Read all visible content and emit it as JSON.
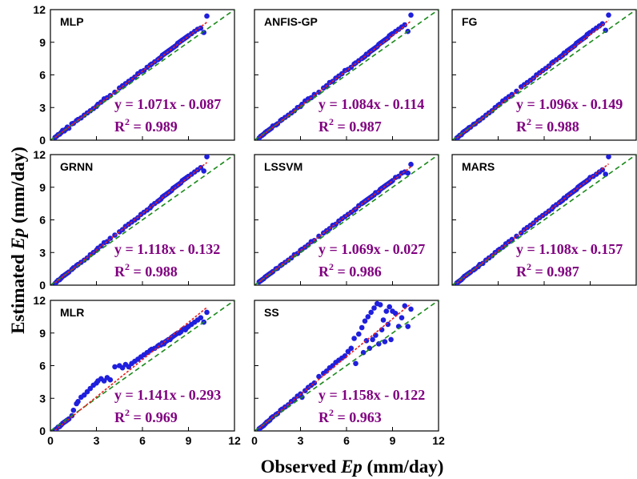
{
  "chart_data": {
    "type": "scatter",
    "figure": {
      "xlabel_prefix": "Observed ",
      "xlabel_var": "Ep",
      "xlabel_unit": " (mm/day)",
      "ylabel_prefix": "Estimated ",
      "ylabel_var": "Ep",
      "ylabel_unit": " (mm/day)"
    },
    "axes": {
      "xlim": [
        0,
        12
      ],
      "ylim": [
        0,
        12
      ],
      "xticks": [
        "0",
        "3",
        "6",
        "9",
        "12"
      ],
      "yticks": [
        "0",
        "3",
        "6",
        "9",
        "12"
      ]
    },
    "colors": {
      "points": "#1f1fdd",
      "fit_line": "#e8201e",
      "identity_line": "#1b8a1b",
      "equation": "#800080"
    },
    "panels": [
      {
        "title": "MLP",
        "eq": "y = 1.071x - 0.087",
        "r2_prefix": "R",
        "r2_sup": "2",
        "r2_suffix": " = 0.989",
        "slope": 1.071,
        "intercept": -0.087,
        "r2": 0.989
      },
      {
        "title": "ANFIS-GP",
        "eq": "y = 1.084x - 0.114",
        "r2_prefix": "R",
        "r2_sup": "2",
        "r2_suffix": " = 0.987",
        "slope": 1.084,
        "intercept": -0.114,
        "r2": 0.987
      },
      {
        "title": "FG",
        "eq": "y = 1.096x - 0.149",
        "r2_prefix": "R",
        "r2_sup": "2",
        "r2_suffix": " = 0.988",
        "slope": 1.096,
        "intercept": -0.149,
        "r2": 0.988
      },
      {
        "title": "GRNN",
        "eq": "y = 1.118x - 0.132",
        "r2_prefix": "R",
        "r2_sup": "2",
        "r2_suffix": " = 0.988",
        "slope": 1.118,
        "intercept": -0.132,
        "r2": 0.988
      },
      {
        "title": "LSSVM",
        "eq": "y = 1.069x - 0.027",
        "r2_prefix": "R",
        "r2_sup": "2",
        "r2_suffix": " = 0.986",
        "slope": 1.069,
        "intercept": -0.027,
        "r2": 0.986
      },
      {
        "title": "MARS",
        "eq": "y = 1.108x - 0.157",
        "r2_prefix": "R",
        "r2_sup": "2",
        "r2_suffix": " = 0.987",
        "slope": 1.108,
        "intercept": -0.157,
        "r2": 0.987
      },
      {
        "title": "MLR",
        "eq": "y = 1.141x - 0.293",
        "r2_prefix": "R",
        "r2_sup": "2",
        "r2_suffix": " = 0.969",
        "slope": 1.141,
        "intercept": -0.293,
        "r2": 0.969
      },
      {
        "title": "SS",
        "eq": "y = 1.158x - 0.122",
        "r2_prefix": "R",
        "r2_sup": "2",
        "r2_suffix": " = 0.963",
        "slope": 1.158,
        "intercept": -0.122,
        "r2": 0.963
      }
    ],
    "observed": [
      0.3,
      0.4,
      0.5,
      0.6,
      0.7,
      0.8,
      0.9,
      1.0,
      1.1,
      1.2,
      1.4,
      1.5,
      1.7,
      1.8,
      2.0,
      2.2,
      2.4,
      2.6,
      2.8,
      3.0,
      3.1,
      3.3,
      3.5,
      3.7,
      3.9,
      4.2,
      4.5,
      4.7,
      4.9,
      5.1,
      5.3,
      5.5,
      5.7,
      5.9,
      6.1,
      6.3,
      6.5,
      6.6,
      6.8,
      7.0,
      7.1,
      7.2,
      7.3,
      7.4,
      7.5,
      7.6,
      7.7,
      7.8,
      7.9,
      8.0,
      8.1,
      8.2,
      8.3,
      8.4,
      8.5,
      8.6,
      8.7,
      8.8,
      8.9,
      9.0,
      9.2,
      9.4,
      9.6,
      9.8,
      10.0,
      10.2
    ],
    "estimated": [
      [
        0.25,
        0.35,
        0.5,
        0.55,
        0.7,
        0.9,
        0.85,
        1.0,
        1.2,
        1.1,
        1.5,
        1.55,
        1.8,
        1.9,
        2.05,
        2.3,
        2.5,
        2.7,
        2.9,
        3.1,
        3.3,
        3.5,
        3.8,
        3.9,
        4.1,
        4.4,
        4.8,
        5.0,
        5.2,
        5.4,
        5.6,
        5.8,
        6.1,
        6.3,
        6.4,
        6.7,
        6.9,
        7.0,
        7.2,
        7.4,
        7.5,
        7.6,
        7.8,
        7.9,
        8.0,
        8.1,
        8.2,
        8.3,
        8.4,
        8.5,
        8.6,
        8.7,
        8.9,
        9.0,
        9.1,
        9.2,
        9.3,
        9.4,
        9.5,
        9.6,
        9.8,
        10.0,
        10.2,
        10.3,
        9.9,
        11.4
      ],
      [
        0.2,
        0.35,
        0.45,
        0.55,
        0.7,
        0.8,
        0.9,
        1.0,
        1.1,
        1.3,
        1.4,
        1.5,
        1.8,
        1.9,
        2.1,
        2.3,
        2.5,
        2.7,
        3.0,
        3.1,
        3.3,
        3.6,
        3.8,
        3.9,
        4.2,
        4.4,
        4.8,
        5.0,
        5.3,
        5.4,
        5.7,
        5.9,
        6.1,
        6.4,
        6.5,
        6.7,
        7.0,
        7.1,
        7.3,
        7.5,
        7.6,
        7.7,
        7.9,
        7.9,
        8.1,
        8.2,
        8.3,
        8.4,
        8.5,
        8.6,
        8.8,
        8.9,
        9.0,
        9.1,
        9.2,
        9.3,
        9.4,
        9.6,
        9.7,
        9.8,
        10.0,
        10.2,
        10.4,
        10.6,
        10.0,
        11.5
      ],
      [
        0.2,
        0.3,
        0.45,
        0.5,
        0.7,
        0.8,
        0.9,
        1.0,
        1.15,
        1.2,
        1.45,
        1.5,
        1.75,
        1.85,
        2.05,
        2.3,
        2.5,
        2.7,
        3.0,
        3.2,
        3.3,
        3.6,
        3.8,
        4.0,
        4.2,
        4.5,
        4.9,
        5.1,
        5.3,
        5.5,
        5.7,
        6.0,
        6.2,
        6.4,
        6.6,
        6.8,
        7.1,
        7.2,
        7.4,
        7.6,
        7.7,
        7.8,
        8.0,
        8.0,
        8.2,
        8.3,
        8.4,
        8.5,
        8.6,
        8.7,
        8.9,
        9.0,
        9.1,
        9.2,
        9.3,
        9.4,
        9.5,
        9.7,
        9.8,
        9.9,
        10.1,
        10.3,
        10.5,
        10.7,
        10.1,
        11.5
      ],
      [
        0.15,
        0.3,
        0.45,
        0.5,
        0.65,
        0.8,
        0.9,
        1.0,
        1.1,
        1.2,
        1.45,
        1.6,
        1.8,
        1.9,
        2.1,
        2.3,
        2.5,
        2.8,
        3.0,
        3.2,
        3.4,
        3.6,
        3.9,
        4.0,
        4.3,
        4.6,
        4.9,
        5.1,
        5.4,
        5.6,
        5.8,
        6.0,
        6.2,
        6.5,
        6.7,
        6.9,
        7.1,
        7.3,
        7.5,
        7.7,
        7.8,
        7.9,
        8.1,
        8.2,
        8.3,
        8.4,
        8.5,
        8.6,
        8.7,
        8.9,
        9.0,
        9.1,
        9.2,
        9.3,
        9.4,
        9.6,
        9.7,
        9.8,
        9.9,
        10.0,
        10.2,
        10.4,
        10.6,
        10.8,
        10.5,
        11.8
      ],
      [
        0.3,
        0.4,
        0.5,
        0.6,
        0.75,
        0.85,
        0.95,
        1.05,
        1.15,
        1.25,
        1.5,
        1.55,
        1.8,
        1.9,
        2.1,
        2.3,
        2.5,
        2.8,
        2.9,
        3.2,
        3.3,
        3.5,
        3.7,
        4.0,
        4.1,
        4.5,
        4.8,
        5.0,
        5.2,
        5.5,
        5.6,
        5.9,
        6.1,
        6.3,
        6.5,
        6.7,
        6.9,
        7.0,
        7.3,
        7.5,
        7.6,
        7.7,
        7.8,
        7.9,
        8.0,
        8.1,
        8.2,
        8.3,
        8.5,
        8.5,
        8.6,
        8.8,
        8.9,
        9.0,
        9.1,
        9.2,
        9.3,
        9.4,
        9.5,
        9.6,
        9.9,
        10.0,
        10.3,
        10.4,
        10.3,
        11.1
      ],
      [
        0.2,
        0.3,
        0.4,
        0.5,
        0.65,
        0.8,
        0.9,
        1.0,
        1.1,
        1.2,
        1.4,
        1.5,
        1.7,
        1.9,
        2.0,
        2.3,
        2.5,
        2.7,
        3.0,
        3.2,
        3.3,
        3.5,
        3.8,
        4.0,
        4.2,
        4.5,
        4.8,
        5.1,
        5.3,
        5.5,
        5.7,
        6.0,
        6.2,
        6.4,
        6.6,
        6.8,
        7.0,
        7.2,
        7.4,
        7.6,
        7.7,
        7.8,
        8.0,
        8.0,
        8.2,
        8.3,
        8.4,
        8.5,
        8.6,
        8.7,
        8.8,
        9.0,
        9.1,
        9.2,
        9.3,
        9.4,
        9.5,
        9.6,
        9.7,
        9.9,
        10.0,
        10.2,
        10.4,
        10.6,
        10.2,
        11.8
      ],
      [
        0.1,
        0.2,
        0.35,
        0.4,
        0.55,
        0.7,
        0.8,
        0.9,
        1.0,
        1.1,
        1.4,
        1.9,
        2.5,
        2.7,
        3.1,
        3.3,
        3.6,
        3.9,
        4.2,
        4.4,
        4.6,
        4.8,
        4.6,
        4.9,
        4.7,
        5.9,
        6.0,
        5.8,
        6.1,
        5.9,
        6.2,
        6.4,
        6.6,
        6.8,
        7.0,
        7.2,
        7.4,
        7.5,
        7.6,
        7.8,
        7.9,
        7.9,
        8.1,
        8.0,
        8.2,
        8.3,
        8.4,
        8.4,
        8.6,
        8.7,
        8.8,
        8.9,
        9.0,
        9.0,
        9.1,
        9.3,
        9.4,
        9.3,
        9.5,
        9.6,
        9.8,
        10.0,
        10.2,
        10.4,
        10.0,
        10.9
      ],
      [
        0.2,
        0.3,
        0.4,
        0.5,
        0.65,
        0.8,
        0.9,
        1.0,
        1.2,
        1.3,
        1.5,
        1.6,
        1.9,
        2.0,
        2.2,
        2.4,
        2.7,
        2.9,
        3.2,
        3.4,
        3.1,
        3.7,
        4.0,
        4.2,
        4.4,
        5.0,
        5.3,
        5.5,
        5.8,
        6.0,
        6.3,
        6.5,
        6.7,
        6.9,
        7.3,
        7.6,
        8.5,
        6.2,
        8.9,
        9.5,
        7.2,
        10.1,
        8.3,
        10.5,
        7.6,
        10.9,
        8.4,
        11.3,
        8.8,
        11.7,
        8.0,
        11.6,
        9.3,
        10.2,
        8.2,
        11.0,
        9.8,
        11.4,
        8.4,
        11.0,
        10.8,
        9.6,
        10.4,
        11.5,
        9.6,
        11.2
      ]
    ]
  }
}
